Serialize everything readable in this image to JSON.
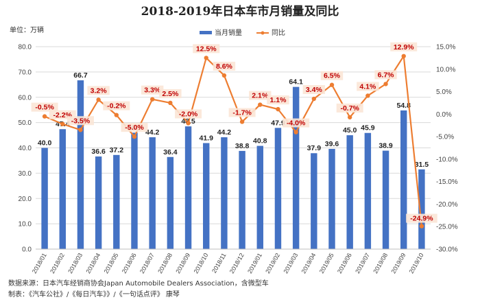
{
  "chart_data": {
    "type": "bar",
    "title": "2018-2019年日本车市月销量及同比",
    "unit_label": "单位：万辆",
    "categories": [
      "2018/01",
      "2018/02",
      "2018/03",
      "2018/04",
      "2018/05",
      "2018/06",
      "2018/07",
      "2018/08",
      "2018/09",
      "2018/10",
      "2018/11",
      "2018/12",
      "2019/01",
      "2019/02",
      "2019/03",
      "2019/04",
      "2019/05",
      "2019/06",
      "2019/07",
      "2019/08",
      "2019/09",
      "2019/10"
    ],
    "series": [
      {
        "name": "当月销量",
        "type": "bar",
        "axis": "left",
        "color": "#4472C4",
        "values": [
          40.0,
          47.4,
          66.7,
          36.6,
          37.2,
          46.0,
          44.2,
          36.4,
          48.5,
          41.9,
          44.2,
          38.8,
          40.8,
          47.9,
          64.1,
          37.9,
          39.6,
          45.0,
          45.9,
          38.9,
          54.8,
          31.5
        ],
        "labels": [
          "40.0",
          "47.4",
          "66.7",
          "36.6",
          "37.2",
          "46.0",
          "44.2",
          "36.4",
          "48.5",
          "41.9",
          "44.2",
          "38.8",
          "40.8",
          "47.9",
          "64.1",
          "37.9",
          "39.6",
          "45.0",
          "45.9",
          "38.9",
          "54.8",
          "31.5"
        ]
      },
      {
        "name": "同比",
        "type": "line",
        "axis": "right",
        "color": "#ED7D31",
        "values": [
          -0.5,
          -2.2,
          -3.5,
          3.2,
          -0.2,
          -5.0,
          3.3,
          2.5,
          -2.0,
          12.5,
          8.6,
          -1.7,
          2.1,
          1.1,
          -4.0,
          3.4,
          6.5,
          -0.7,
          4.1,
          6.7,
          12.9,
          -24.9
        ],
        "labels": [
          "-0.5%",
          "-2.2%",
          "-3.5%",
          "3.2%",
          "-0.2%",
          "-5.0%",
          "3.3%",
          "2.5%",
          "-2.0%",
          "12.5%",
          "8.6%",
          "-1.7%",
          "2.1%",
          "1.1%",
          "-4.0%",
          "3.4%",
          "6.5%",
          "-0.7%",
          "4.1%",
          "6.7%",
          "12.9%",
          "-24.9%"
        ]
      }
    ],
    "ylim_left": [
      0,
      80
    ],
    "yticks_left": [
      "0.0",
      "10.0",
      "20.0",
      "30.0",
      "40.0",
      "50.0",
      "60.0",
      "70.0",
      "80.0"
    ],
    "ylim_right": [
      -30,
      15
    ],
    "yticks_right": [
      "-30.0%",
      "-25.0%",
      "-20.0%",
      "-15.0%",
      "-10.0%",
      "-5.0%",
      "0.0%",
      "5.0%",
      "10.0%",
      "15.0%"
    ],
    "grid": true,
    "legend_position": "top-center"
  },
  "footer": {
    "source": "数据来源：日本汽车经销商协会Japan Automobile Dealers Association，含微型车",
    "credit": "制表：《汽车公社》/《每日汽车》》/《一句话点评》  康琴"
  }
}
